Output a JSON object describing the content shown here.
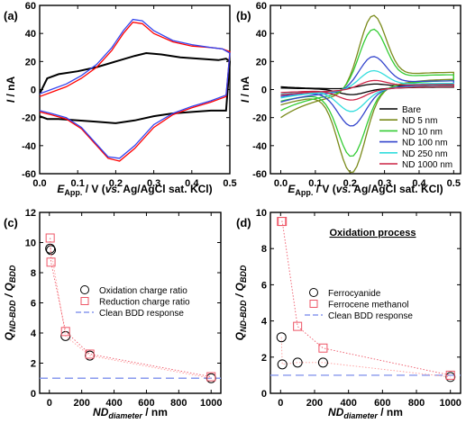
{
  "chart_data": [
    {
      "panel": "(a)",
      "type": "line",
      "xlabel": "E_App. / V (vs. Ag/AgCl sat. KCl)",
      "xlabel_main": "E",
      "xlabel_sub": "App.",
      "xlabel_rest": " / V (",
      "xlabel_italic": "vs.",
      "xlabel_end": " Ag/AgCl sat. KCl)",
      "ylabel": "I / nA",
      "xlim": [
        0.0,
        0.5
      ],
      "ylim": [
        -60,
        60
      ],
      "xticks": [
        "0.0",
        "0.1",
        "0.2",
        "0.3",
        "0.4",
        "0.5"
      ],
      "yticks": [
        "-60",
        "-40",
        "-20",
        "0",
        "20",
        "40",
        "60"
      ],
      "series": [
        {
          "color": "#000000",
          "role": "bare",
          "upper": [
            [
              0.0,
              -3
            ],
            [
              0.02,
              8
            ],
            [
              0.05,
              11
            ],
            [
              0.1,
              13
            ],
            [
              0.15,
              16
            ],
            [
              0.2,
              20
            ],
            [
              0.25,
              24
            ],
            [
              0.28,
              26
            ],
            [
              0.32,
              25
            ],
            [
              0.37,
              23
            ],
            [
              0.42,
              22
            ],
            [
              0.47,
              21
            ],
            [
              0.49,
              22
            ],
            [
              0.5,
              20
            ]
          ],
          "lower": [
            [
              0.5,
              20
            ],
            [
              0.49,
              -15
            ],
            [
              0.45,
              -15
            ],
            [
              0.4,
              -16
            ],
            [
              0.35,
              -17
            ],
            [
              0.3,
              -19
            ],
            [
              0.25,
              -22
            ],
            [
              0.2,
              -24
            ],
            [
              0.15,
              -23
            ],
            [
              0.1,
              -22
            ],
            [
              0.05,
              -21
            ],
            [
              0.02,
              -21
            ],
            [
              0.0,
              -19
            ]
          ]
        },
        {
          "color": "#ff0000",
          "role": "nd",
          "upper": [
            [
              0.0,
              -5
            ],
            [
              0.03,
              -2
            ],
            [
              0.07,
              2
            ],
            [
              0.11,
              8
            ],
            [
              0.15,
              16
            ],
            [
              0.19,
              28
            ],
            [
              0.22,
              40
            ],
            [
              0.245,
              48
            ],
            [
              0.27,
              47
            ],
            [
              0.3,
              40
            ],
            [
              0.35,
              34
            ],
            [
              0.4,
              31
            ],
            [
              0.45,
              30
            ],
            [
              0.48,
              29
            ],
            [
              0.5,
              27
            ]
          ],
          "lower": [
            [
              0.5,
              27
            ],
            [
              0.49,
              -5
            ],
            [
              0.45,
              -9
            ],
            [
              0.4,
              -13
            ],
            [
              0.35,
              -18
            ],
            [
              0.3,
              -27
            ],
            [
              0.25,
              -42
            ],
            [
              0.21,
              -51
            ],
            [
              0.18,
              -49
            ],
            [
              0.15,
              -40
            ],
            [
              0.11,
              -28
            ],
            [
              0.07,
              -21
            ],
            [
              0.03,
              -18
            ],
            [
              0.0,
              -16
            ]
          ]
        },
        {
          "color": "#3344ee",
          "role": "nd",
          "upper": [
            [
              0.0,
              -3
            ],
            [
              0.03,
              0
            ],
            [
              0.07,
              4
            ],
            [
              0.11,
              10
            ],
            [
              0.15,
              18
            ],
            [
              0.19,
              30
            ],
            [
              0.22,
              42
            ],
            [
              0.245,
              50
            ],
            [
              0.27,
              49
            ],
            [
              0.3,
              42
            ],
            [
              0.35,
              35
            ],
            [
              0.4,
              32
            ],
            [
              0.45,
              30
            ],
            [
              0.48,
              29
            ],
            [
              0.5,
              26
            ]
          ],
          "lower": [
            [
              0.5,
              26
            ],
            [
              0.49,
              -4
            ],
            [
              0.45,
              -8
            ],
            [
              0.4,
              -12
            ],
            [
              0.35,
              -17
            ],
            [
              0.3,
              -25
            ],
            [
              0.25,
              -40
            ],
            [
              0.21,
              -49
            ],
            [
              0.18,
              -48
            ],
            [
              0.15,
              -39
            ],
            [
              0.11,
              -27
            ],
            [
              0.07,
              -20
            ],
            [
              0.03,
              -17
            ],
            [
              0.0,
              -15
            ]
          ]
        }
      ]
    },
    {
      "panel": "(b)",
      "type": "line",
      "xlabel": "E_App. / V (vs. Ag/AgCl sat. KCl)",
      "xlabel_main": "E",
      "xlabel_sub": "App.",
      "xlabel_rest": " / V (",
      "xlabel_italic": "vs.",
      "xlabel_end": " Ag/AgCl sat. KCl)",
      "ylabel": "I / nA",
      "xlim": [
        -0.03,
        0.52
      ],
      "ylim": [
        -60,
        60
      ],
      "xticks": [
        "0.0",
        "0.1",
        "0.2",
        "0.3",
        "0.4",
        "0.5"
      ],
      "yticks": [
        "-60",
        "-40",
        "-20",
        "0",
        "20",
        "40",
        "60"
      ],
      "legend_position": "lower-right",
      "series": [
        {
          "name": "Bare",
          "color": "#000000",
          "ipa": 3,
          "ipc": -4,
          "base": 2,
          "tail": 3
        },
        {
          "name": "ND 5 nm",
          "color": "#7a8a1a",
          "ipa": 52,
          "ipc": -57,
          "base": -20,
          "tail": 14
        },
        {
          "name": "ND 10 nm",
          "color": "#33cc33",
          "ipa": 42,
          "ipc": -46,
          "base": -15,
          "tail": 12
        },
        {
          "name": "ND 100 nm",
          "color": "#3344cc",
          "ipa": 23,
          "ipc": -25,
          "base": -9,
          "tail": 7
        },
        {
          "name": "ND 250 nm",
          "color": "#33dddd",
          "ipa": 13,
          "ipc": -15,
          "base": -6,
          "tail": 5
        },
        {
          "name": "ND 1000 nm",
          "color": "#cc2244",
          "ipa": 6,
          "ipc": -7,
          "base": -4,
          "tail": 4
        }
      ]
    },
    {
      "panel": "(c)",
      "type": "scatter",
      "ylabel": "Q_ND-BDD / Q_BDD",
      "ylabel_main": "Q",
      "ylabel_sub1": "ND-BDD",
      "ylabel_mid": " / Q",
      "ylabel_sub2": "BDD",
      "xlabel": "ND_diameter / nm",
      "xlabel_main": "ND",
      "xlabel_sub": "diameter",
      "xlabel_end": " / nm",
      "xlim": [
        -60,
        1060
      ],
      "ylim": [
        0,
        12
      ],
      "xticks": [
        "0",
        "200",
        "400",
        "600",
        "800",
        "1000"
      ],
      "yticks": [
        "0",
        "2",
        "4",
        "6",
        "8",
        "10",
        "12"
      ],
      "legend_position": "upper-right",
      "series": [
        {
          "name": "Oxidation charge ratio",
          "marker": "circle",
          "color": "#000000",
          "x": [
            5,
            10,
            100,
            250,
            1000
          ],
          "y": [
            9.6,
            9.5,
            3.8,
            2.5,
            1.0
          ]
        },
        {
          "name": "Reduction charge ratio",
          "marker": "square",
          "color": "#ee5566",
          "x": [
            5,
            10,
            100,
            250,
            1000
          ],
          "y": [
            10.3,
            8.7,
            4.1,
            2.6,
            1.1
          ]
        }
      ],
      "reference": {
        "name": "Clean BDD response",
        "y": 1.0,
        "color": "#8899ee"
      }
    },
    {
      "panel": "(d)",
      "type": "scatter",
      "title": "Oxidation process",
      "ylabel": "Q_ND-BDD / Q_BDD",
      "ylabel_main": "Q",
      "ylabel_sub1": "ND-BDD",
      "ylabel_mid": " / Q",
      "ylabel_sub2": "BDD",
      "xlabel": "ND_diameter / nm",
      "xlabel_main": "ND",
      "xlabel_sub": "diameter",
      "xlabel_end": " / nm",
      "xlim": [
        -60,
        1060
      ],
      "ylim": [
        0,
        10
      ],
      "xticks": [
        "0",
        "200",
        "400",
        "600",
        "800",
        "1000"
      ],
      "yticks": [
        "0",
        "2",
        "4",
        "6",
        "8",
        "10"
      ],
      "legend_position": "upper-right",
      "series": [
        {
          "name": "Ferrocyanide",
          "marker": "circle",
          "color": "#000000",
          "x": [
            5,
            10,
            100,
            250,
            1000
          ],
          "y": [
            3.1,
            1.6,
            1.7,
            1.7,
            0.9
          ]
        },
        {
          "name": "Ferrocene methanol",
          "marker": "square",
          "color": "#ee5566",
          "x": [
            5,
            10,
            100,
            250,
            1000
          ],
          "y": [
            9.5,
            9.5,
            3.7,
            2.5,
            1.0
          ]
        }
      ],
      "reference": {
        "name": "Clean BDD response",
        "y": 1.0,
        "color": "#8899ee"
      }
    }
  ]
}
